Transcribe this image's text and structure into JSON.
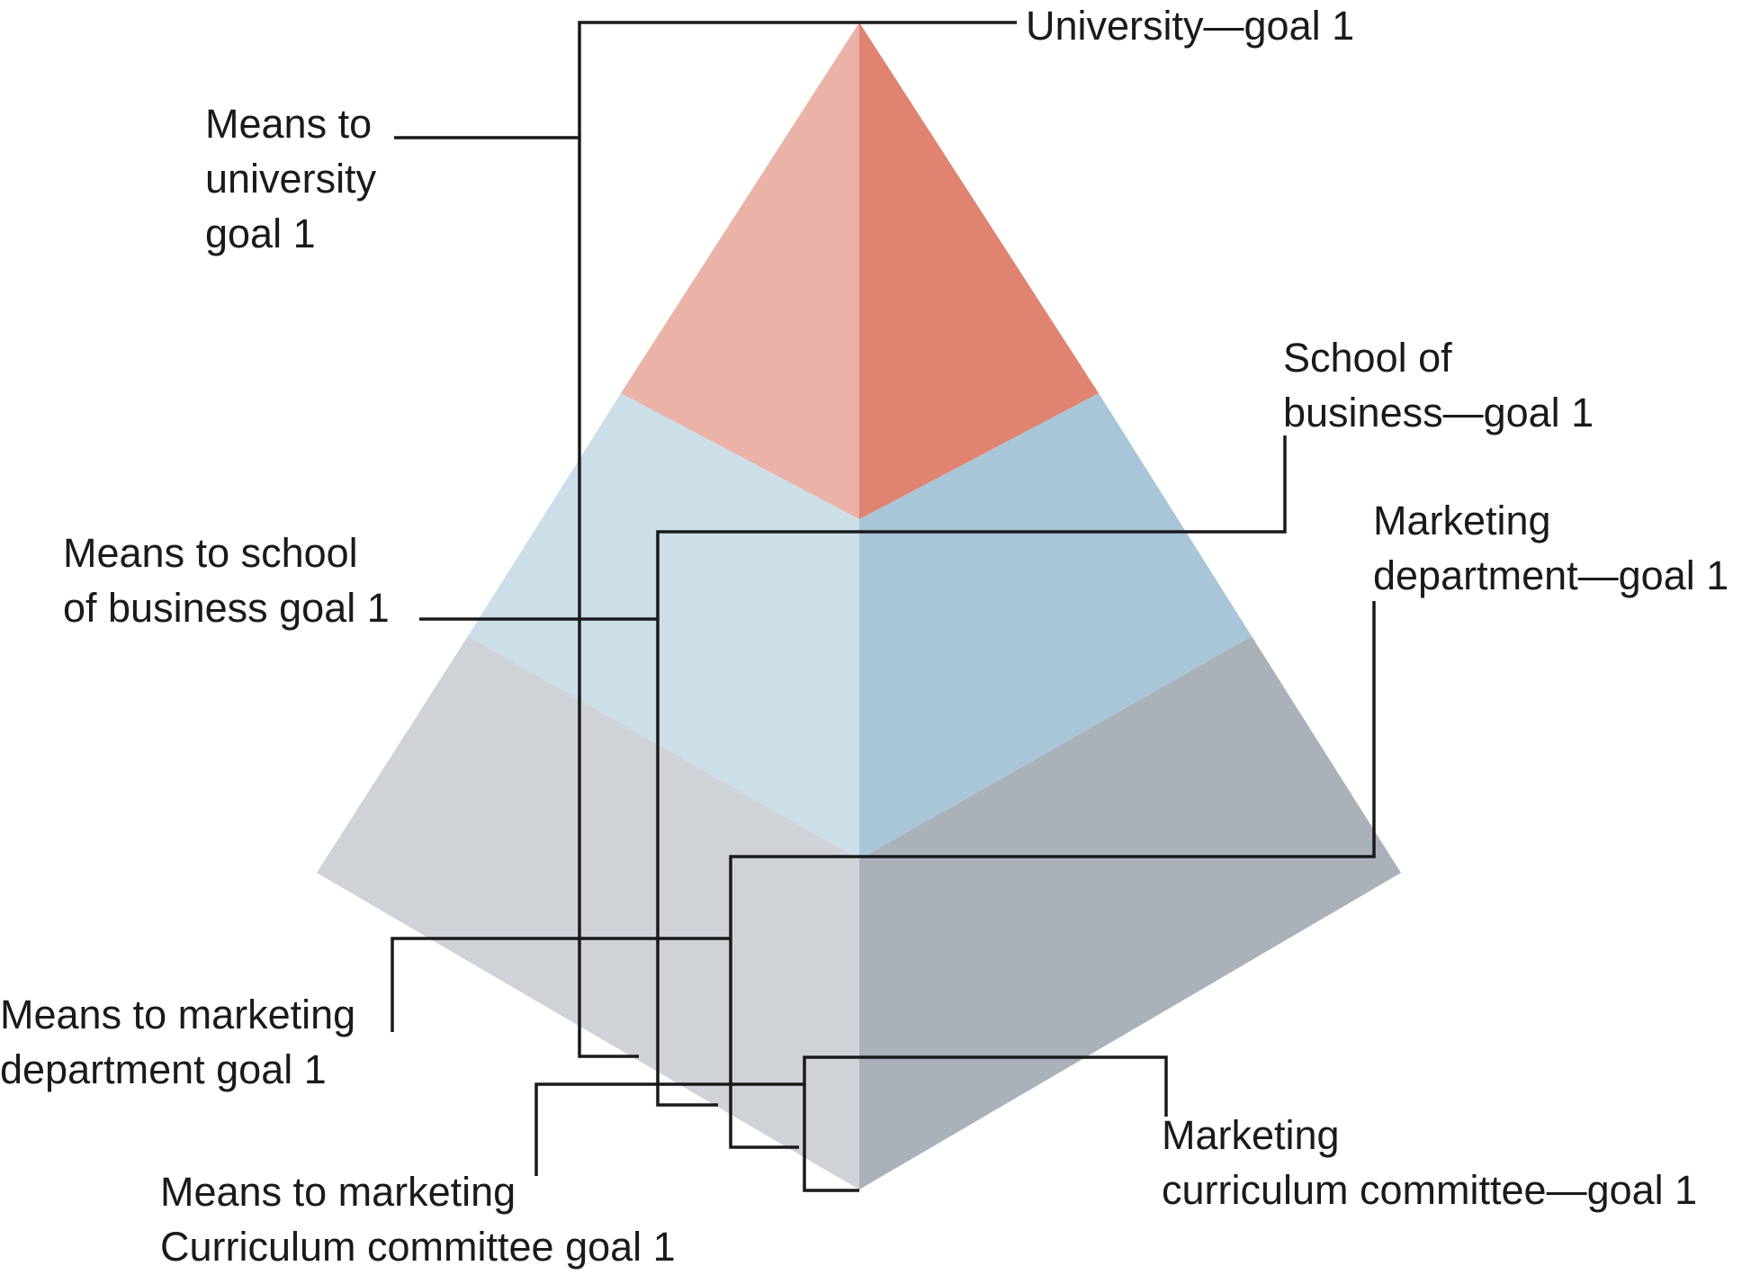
{
  "diagram": {
    "colors": {
      "top_left": "#EBB2A7",
      "top_right": "#E08371",
      "middle_left": "#CCDEE8",
      "middle_right": "#A8C6D7",
      "bottom_left": "#CFD2D7",
      "bottom_right": "#ABB1B8",
      "lines": "#1A1A1A"
    },
    "goals": {
      "university": [
        "University—goal 1"
      ],
      "school": [
        "School of",
        "business—goal 1"
      ],
      "department": [
        "Marketing",
        "department—goal 1"
      ],
      "committee": [
        "Marketing",
        "curriculum committee—goal 1"
      ]
    },
    "means": {
      "university": [
        "Means to",
        "university",
        "goal 1"
      ],
      "school": [
        "Means to school",
        "of business goal 1"
      ],
      "department": [
        "Means to marketing",
        "department goal 1"
      ],
      "committee": [
        "Means to marketing",
        "Curriculum committee goal 1"
      ]
    }
  }
}
